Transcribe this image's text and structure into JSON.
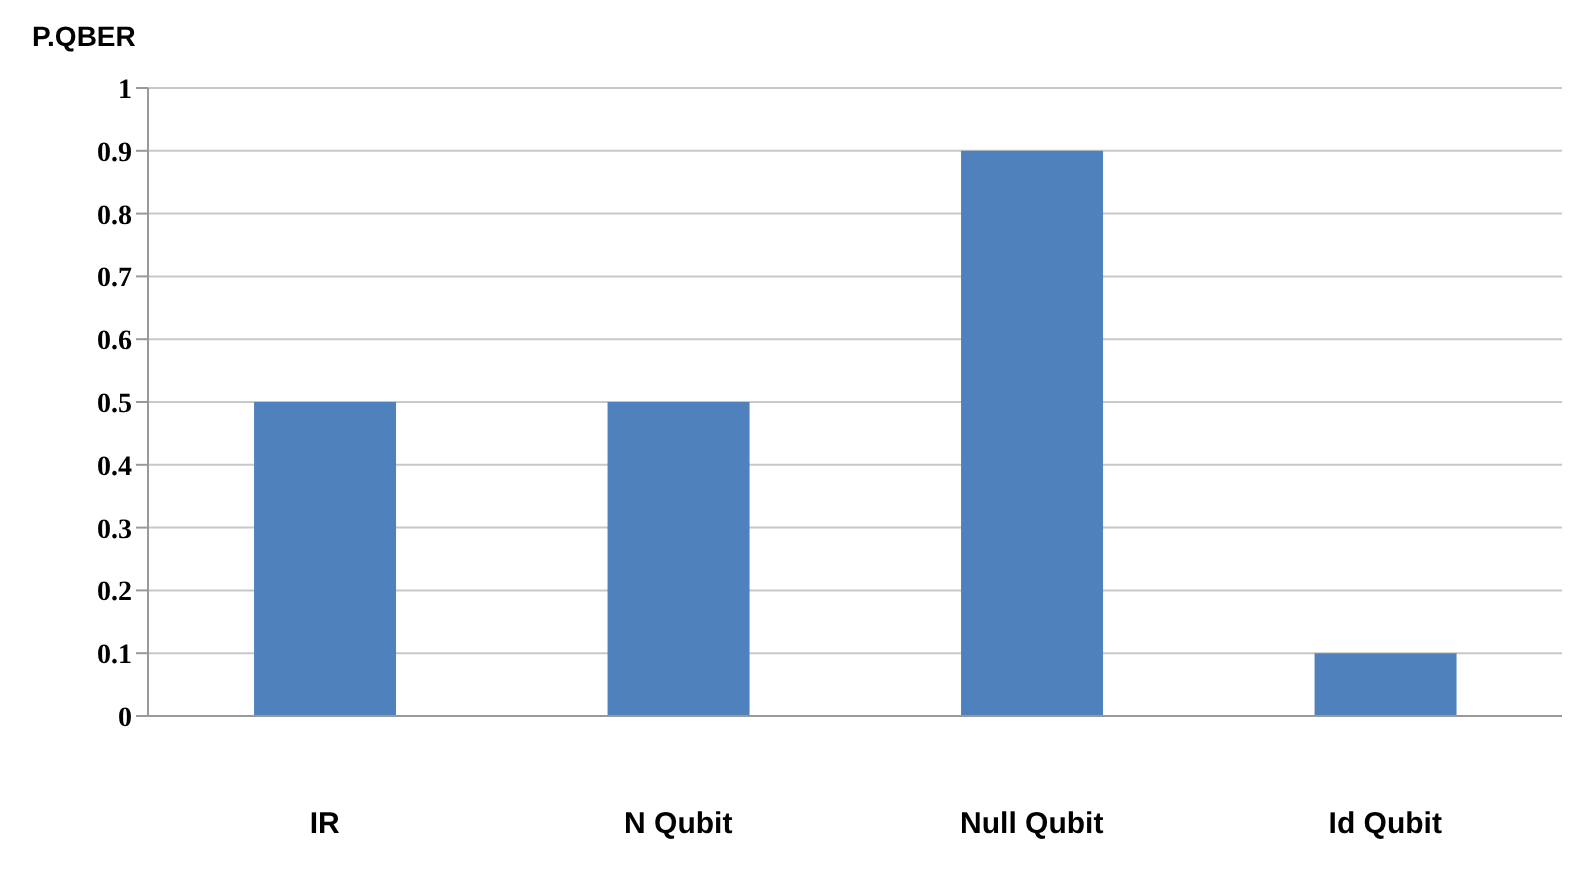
{
  "chart_data": {
    "type": "bar",
    "ylabel": "P.QBER",
    "categories": [
      "IR",
      "N Qubit",
      "Null Qubit",
      "Id Qubit"
    ],
    "values": [
      0.5,
      0.5,
      0.9,
      0.1
    ],
    "color": "#4f81bd",
    "ylim": [
      0,
      1
    ],
    "yticks": [
      0,
      0.1,
      0.2,
      0.3,
      0.4,
      0.5,
      0.6,
      0.7,
      0.8,
      0.9,
      1
    ],
    "grid": "y"
  }
}
